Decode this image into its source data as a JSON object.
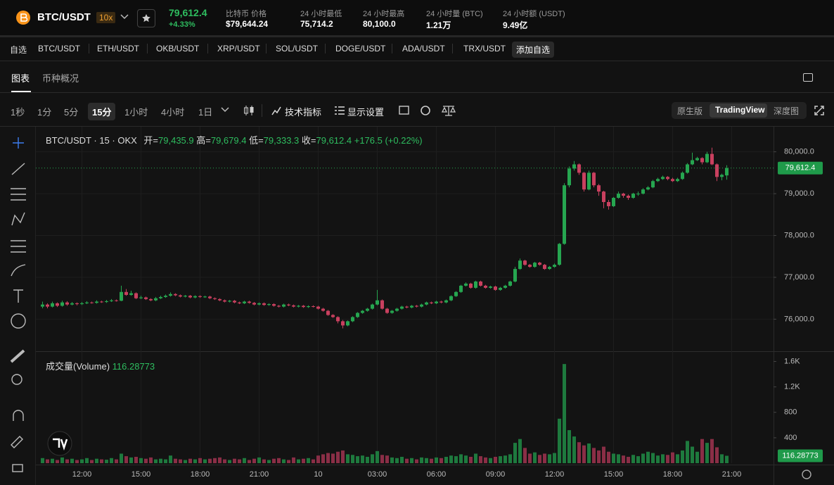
{
  "header": {
    "symbol": "BTC/USDT",
    "leverage": "10x",
    "price": "79,612.4",
    "change": "+4.33%",
    "stats": [
      {
        "label": "比特币 价格",
        "value": "$79,644.24"
      },
      {
        "label": "24 小时最低",
        "value": "75,714.2"
      },
      {
        "label": "24 小时最高",
        "value": "80,100.0"
      },
      {
        "label": "24 小时量 (BTC)",
        "value": "1.21万"
      },
      {
        "label": "24 小时额 (USDT)",
        "value": "9.49亿"
      }
    ]
  },
  "watchlist": [
    "自选",
    "BTC/USDT",
    "ETH/USDT",
    "OKB/USDT",
    "XRP/USDT",
    "SOL/USDT",
    "DOGE/USDT",
    "ADA/USDT",
    "TRX/USDT",
    "添加自选"
  ],
  "tabs": [
    "图表",
    "币种概况"
  ],
  "intervals": [
    "1秒",
    "1分",
    "5分",
    "15分",
    "1小时",
    "4小时",
    "1日"
  ],
  "active_interval": 3,
  "tools": [
    "技术指标",
    "显示设置"
  ],
  "views": [
    "原生版",
    "TradingView",
    "深度图"
  ],
  "active_view": 1,
  "chart_data": [
    {
      "type": "candlestick",
      "title": "BTC/USDT · 15 · OKX",
      "ohlc_legend": [
        {
          "key": "开=",
          "value": "79,435.9"
        },
        {
          "key": "高=",
          "value": "79,679.4"
        },
        {
          "key": "低=",
          "value": "79,333.3"
        },
        {
          "key": "收=",
          "value": "79,612.4"
        }
      ],
      "change_label": "+176.5 (+0.22%)",
      "up_color": "#26a650",
      "down_color": "#c9405f",
      "ohlc": [
        [
          76300,
          76420,
          76260,
          76350
        ],
        [
          76350,
          76380,
          76260,
          76300
        ],
        [
          76300,
          76420,
          76280,
          76380
        ],
        [
          76380,
          76400,
          76290,
          76320
        ],
        [
          76320,
          76440,
          76300,
          76400
        ],
        [
          76400,
          76430,
          76320,
          76350
        ],
        [
          76350,
          76410,
          76330,
          76380
        ],
        [
          76380,
          76400,
          76330,
          76360
        ],
        [
          76360,
          76410,
          76340,
          76380
        ],
        [
          76380,
          76430,
          76360,
          76400
        ],
        [
          76400,
          76420,
          76370,
          76390
        ],
        [
          76390,
          76450,
          76370,
          76420
        ],
        [
          76420,
          76440,
          76390,
          76410
        ],
        [
          76410,
          76460,
          76390,
          76430
        ],
        [
          76430,
          76480,
          76410,
          76450
        ],
        [
          76450,
          76470,
          76420,
          76440
        ],
        [
          76440,
          76800,
          76430,
          76650
        ],
        [
          76650,
          76720,
          76560,
          76580
        ],
        [
          76580,
          76680,
          76560,
          76620
        ],
        [
          76620,
          76640,
          76480,
          76500
        ],
        [
          76500,
          76560,
          76480,
          76520
        ],
        [
          76520,
          76540,
          76460,
          76480
        ],
        [
          76480,
          76500,
          76430,
          76450
        ],
        [
          76450,
          76530,
          76430,
          76500
        ],
        [
          76500,
          76560,
          76480,
          76530
        ],
        [
          76530,
          76590,
          76510,
          76560
        ],
        [
          76560,
          76640,
          76540,
          76600
        ],
        [
          76600,
          76620,
          76550,
          76570
        ],
        [
          76570,
          76590,
          76520,
          76540
        ],
        [
          76540,
          76580,
          76520,
          76560
        ],
        [
          76560,
          76580,
          76500,
          76520
        ],
        [
          76520,
          76570,
          76500,
          76550
        ],
        [
          76550,
          76570,
          76510,
          76530
        ],
        [
          76530,
          76560,
          76510,
          76540
        ],
        [
          76540,
          76560,
          76480,
          76500
        ],
        [
          76500,
          76520,
          76460,
          76480
        ],
        [
          76480,
          76500,
          76430,
          76450
        ],
        [
          76450,
          76470,
          76400,
          76420
        ],
        [
          76420,
          76460,
          76400,
          76440
        ],
        [
          76440,
          76460,
          76380,
          76400
        ],
        [
          76400,
          76420,
          76360,
          76380
        ],
        [
          76380,
          76440,
          76360,
          76420
        ],
        [
          76420,
          76440,
          76370,
          76390
        ],
        [
          76390,
          76410,
          76330,
          76350
        ],
        [
          76350,
          76400,
          76330,
          76380
        ],
        [
          76380,
          76400,
          76320,
          76340
        ],
        [
          76340,
          76380,
          76320,
          76360
        ],
        [
          76360,
          76380,
          76300,
          76320
        ],
        [
          76320,
          76340,
          76280,
          76300
        ],
        [
          76300,
          76370,
          76280,
          76350
        ],
        [
          76350,
          76370,
          76310,
          76330
        ],
        [
          76330,
          76350,
          76280,
          76300
        ],
        [
          76300,
          76340,
          76280,
          76320
        ],
        [
          76320,
          76340,
          76270,
          76290
        ],
        [
          76290,
          76330,
          76270,
          76310
        ],
        [
          76310,
          76330,
          76280,
          76300
        ],
        [
          76300,
          76320,
          76230,
          76250
        ],
        [
          76250,
          76270,
          76180,
          76200
        ],
        [
          76200,
          76220,
          76080,
          76100
        ],
        [
          76100,
          76120,
          76030,
          76050
        ],
        [
          76050,
          76070,
          75900,
          75950
        ],
        [
          75950,
          75980,
          75780,
          75850
        ],
        [
          75850,
          75970,
          75830,
          75950
        ],
        [
          75950,
          76070,
          75930,
          76050
        ],
        [
          76050,
          76170,
          76030,
          76150
        ],
        [
          76150,
          76220,
          76130,
          76200
        ],
        [
          76200,
          76270,
          76180,
          76250
        ],
        [
          76250,
          76370,
          76230,
          76350
        ],
        [
          76350,
          76700,
          76330,
          76450
        ],
        [
          76450,
          76470,
          76230,
          76250
        ],
        [
          76250,
          76270,
          76130,
          76150
        ],
        [
          76150,
          76220,
          76130,
          76200
        ],
        [
          76200,
          76270,
          76180,
          76250
        ],
        [
          76250,
          76320,
          76230,
          76300
        ],
        [
          76300,
          76320,
          76260,
          76280
        ],
        [
          76280,
          76340,
          76260,
          76320
        ],
        [
          76320,
          76340,
          76280,
          76300
        ],
        [
          76300,
          76370,
          76280,
          76350
        ],
        [
          76350,
          76420,
          76330,
          76400
        ],
        [
          76400,
          76420,
          76360,
          76380
        ],
        [
          76380,
          76440,
          76360,
          76420
        ],
        [
          76420,
          76440,
          76380,
          76400
        ],
        [
          76400,
          76470,
          76380,
          76450
        ],
        [
          76450,
          76570,
          76430,
          76550
        ],
        [
          76550,
          76670,
          76530,
          76650
        ],
        [
          76650,
          76820,
          76630,
          76800
        ],
        [
          76800,
          76880,
          76780,
          76850
        ],
        [
          76850,
          76870,
          76730,
          76750
        ],
        [
          76750,
          76920,
          76730,
          76900
        ],
        [
          76900,
          76920,
          76780,
          76800
        ],
        [
          76800,
          76820,
          76730,
          76750
        ],
        [
          76750,
          76800,
          76730,
          76780
        ],
        [
          76780,
          76800,
          76680,
          76700
        ],
        [
          76700,
          76770,
          76680,
          76750
        ],
        [
          76750,
          76820,
          76730,
          76800
        ],
        [
          76800,
          76920,
          76780,
          76900
        ],
        [
          76900,
          77250,
          76880,
          77200
        ],
        [
          77200,
          77450,
          77180,
          77400
        ],
        [
          77400,
          77420,
          77280,
          77300
        ],
        [
          77300,
          77320,
          77230,
          77250
        ],
        [
          77250,
          77370,
          77230,
          77350
        ],
        [
          77350,
          77370,
          77280,
          77300
        ],
        [
          77300,
          77320,
          77180,
          77200
        ],
        [
          77200,
          77270,
          77180,
          77250
        ],
        [
          77250,
          77330,
          77230,
          77300
        ],
        [
          77300,
          77820,
          77280,
          77800
        ],
        [
          77800,
          79250,
          77780,
          79200
        ],
        [
          79200,
          79650,
          79150,
          79600
        ],
        [
          79600,
          79780,
          79550,
          79700
        ],
        [
          79700,
          79720,
          79450,
          79500
        ],
        [
          79500,
          79520,
          79050,
          79100
        ],
        [
          79100,
          79550,
          79080,
          79500
        ],
        [
          79500,
          79520,
          79150,
          79200
        ],
        [
          79200,
          79230,
          78950,
          79050
        ],
        [
          79050,
          79070,
          78650,
          78800
        ],
        [
          78800,
          78850,
          78620,
          78700
        ],
        [
          78700,
          78920,
          78680,
          78900
        ],
        [
          78900,
          79050,
          78880,
          79000
        ],
        [
          79000,
          79020,
          78900,
          78950
        ],
        [
          78950,
          78980,
          78850,
          78900
        ],
        [
          78900,
          79020,
          78880,
          79000
        ],
        [
          79000,
          79050,
          78950,
          79000
        ],
        [
          79000,
          79130,
          78980,
          79100
        ],
        [
          79100,
          79180,
          79080,
          79150
        ],
        [
          79150,
          79330,
          79130,
          79300
        ],
        [
          79300,
          79380,
          79280,
          79350
        ],
        [
          79350,
          79430,
          79330,
          79400
        ],
        [
          79400,
          79420,
          79320,
          79350
        ],
        [
          79350,
          79380,
          79280,
          79300
        ],
        [
          79300,
          79380,
          79280,
          79350
        ],
        [
          79350,
          79530,
          79330,
          79500
        ],
        [
          79500,
          79730,
          79480,
          79700
        ],
        [
          79700,
          79980,
          79680,
          79800
        ],
        [
          79800,
          79880,
          79780,
          79850
        ],
        [
          79850,
          79870,
          79700,
          79750
        ],
        [
          79750,
          80000,
          79730,
          79950
        ],
        [
          79950,
          80100,
          79680,
          79700
        ],
        [
          79700,
          79720,
          79300,
          79400
        ],
        [
          79400,
          79480,
          79320,
          79450
        ],
        [
          79435.9,
          79679.4,
          79333.3,
          79612.4
        ]
      ],
      "xlim": [
        -0.5,
        148.5
      ],
      "xticks": [
        {
          "value": 8,
          "label": "12:00"
        },
        {
          "value": 20,
          "label": "15:00"
        },
        {
          "value": 32,
          "label": "18:00"
        },
        {
          "value": 44,
          "label": "21:00"
        },
        {
          "value": 56,
          "label": "10"
        },
        {
          "value": 68,
          "label": "03:00"
        },
        {
          "value": 80,
          "label": "06:00"
        },
        {
          "value": 92,
          "label": "09:00"
        },
        {
          "value": 104,
          "label": "12:00"
        },
        {
          "value": 116,
          "label": "15:00"
        },
        {
          "value": 128,
          "label": "18:00"
        },
        {
          "value": 140,
          "label": "21:00"
        }
      ],
      "ylim": [
        75250,
        80600
      ],
      "yticks": [
        {
          "value": 76000,
          "label": "76,000.0"
        },
        {
          "value": 77000,
          "label": "77,000.0"
        },
        {
          "value": 78000,
          "label": "78,000.0"
        },
        {
          "value": 79000,
          "label": "79,000.0"
        },
        {
          "value": 80000,
          "label": "80,000.0"
        }
      ],
      "last_price_label": "79,612.4",
      "grid": true
    },
    {
      "type": "bar",
      "title": "成交量(Volume)",
      "last_label": "116.28773",
      "up_color": "#1e7a3e",
      "down_color": "#8a2e46",
      "values": [
        80,
        60,
        70,
        50,
        90,
        60,
        70,
        50,
        60,
        80,
        50,
        70,
        60,
        55,
        80,
        60,
        150,
        110,
        90,
        100,
        80,
        70,
        90,
        60,
        70,
        60,
        120,
        70,
        60,
        50,
        70,
        60,
        80,
        60,
        70,
        80,
        90,
        60,
        50,
        70,
        60,
        80,
        50,
        70,
        90,
        60,
        50,
        70,
        80,
        60,
        50,
        90,
        60,
        70,
        80,
        60,
        120,
        140,
        160,
        150,
        180,
        200,
        140,
        130,
        110,
        120,
        100,
        140,
        190,
        130,
        120,
        90,
        80,
        100,
        70,
        80,
        60,
        90,
        80,
        70,
        90,
        80,
        100,
        120,
        110,
        140,
        120,
        100,
        150,
        110,
        90,
        80,
        100,
        110,
        120,
        140,
        320,
        380,
        240,
        150,
        170,
        130,
        150,
        140,
        160,
        700,
        1560,
        520,
        420,
        330,
        280,
        310,
        240,
        200,
        260,
        180,
        150,
        140,
        120,
        100,
        130,
        110,
        150,
        180,
        160,
        120,
        140,
        130,
        170,
        140,
        200,
        350,
        260,
        180,
        380,
        320,
        380,
        250,
        140,
        116.28773
      ],
      "ylim": [
        0,
        1750
      ],
      "yticks": [
        400,
        800,
        {
          "value": 1200,
          "label": "1.2K"
        },
        {
          "value": 1600,
          "label": "1.6K"
        }
      ]
    }
  ]
}
